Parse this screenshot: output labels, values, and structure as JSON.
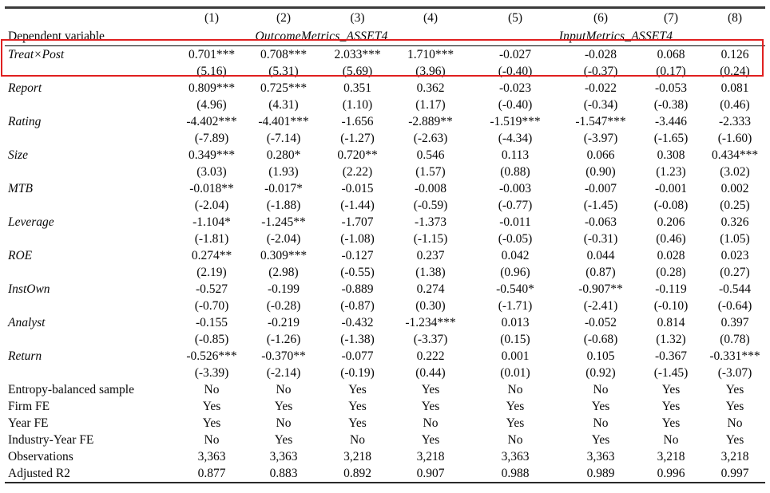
{
  "highlight": {
    "color": "#e02020",
    "target_row": "Treat×Post"
  },
  "table": {
    "dependent_variable_label": "Dependent variable",
    "column_numbers": [
      "(1)",
      "(2)",
      "(3)",
      "(4)",
      "(5)",
      "(6)",
      "(7)",
      "(8)"
    ],
    "dep_var_groups": [
      {
        "label": "OutcomeMetrics_ASSET4",
        "span": 4
      },
      {
        "label": "InputMetrics_ASSET4",
        "span": 4
      }
    ],
    "coefficient_rows": [
      {
        "variable": "Treat×Post",
        "highlighted": true,
        "coefficients": [
          "0.701***",
          "0.708***",
          "2.033***",
          "1.710***",
          "-0.027",
          "-0.028",
          "0.068",
          "0.126"
        ],
        "tstats": [
          "(5.16)",
          "(5.31)",
          "(5.69)",
          "(3.96)",
          "(-0.40)",
          "(-0.37)",
          "(0.17)",
          "(0.24)"
        ]
      },
      {
        "variable": "Report",
        "highlighted": false,
        "coefficients": [
          "0.809***",
          "0.725***",
          "0.351",
          "0.362",
          "-0.023",
          "-0.022",
          "-0.053",
          "0.081"
        ],
        "tstats": [
          "(4.96)",
          "(4.31)",
          "(1.10)",
          "(1.17)",
          "(-0.40)",
          "(-0.34)",
          "(-0.38)",
          "(0.46)"
        ]
      },
      {
        "variable": "Rating",
        "highlighted": false,
        "coefficients": [
          "-4.402***",
          "-4.401***",
          "-1.656",
          "-2.889**",
          "-1.519***",
          "-1.547***",
          "-3.446",
          "-2.333"
        ],
        "tstats": [
          "(-7.89)",
          "(-7.14)",
          "(-1.27)",
          "(-2.63)",
          "(-4.34)",
          "(-3.97)",
          "(-1.65)",
          "(-1.60)"
        ]
      },
      {
        "variable": "Size",
        "highlighted": false,
        "coefficients": [
          "0.349***",
          "0.280*",
          "0.720**",
          "0.546",
          "0.113",
          "0.066",
          "0.308",
          "0.434***"
        ],
        "tstats": [
          "(3.03)",
          "(1.93)",
          "(2.22)",
          "(1.57)",
          "(0.88)",
          "(0.90)",
          "(1.23)",
          "(3.02)"
        ]
      },
      {
        "variable": "MTB",
        "highlighted": false,
        "coefficients": [
          "-0.018**",
          "-0.017*",
          "-0.015",
          "-0.008",
          "-0.003",
          "-0.007",
          "-0.001",
          "0.002"
        ],
        "tstats": [
          "(-2.04)",
          "(-1.88)",
          "(-1.44)",
          "(-0.59)",
          "(-0.77)",
          "(-1.45)",
          "(-0.08)",
          "(0.25)"
        ]
      },
      {
        "variable": "Leverage",
        "highlighted": false,
        "coefficients": [
          "-1.104*",
          "-1.245**",
          "-1.707",
          "-1.373",
          "-0.011",
          "-0.063",
          "0.206",
          "0.326"
        ],
        "tstats": [
          "(-1.81)",
          "(-2.04)",
          "(-1.08)",
          "(-1.15)",
          "(-0.05)",
          "(-0.31)",
          "(0.46)",
          "(1.05)"
        ]
      },
      {
        "variable": "ROE",
        "highlighted": false,
        "coefficients": [
          "0.274**",
          "0.309***",
          "-0.127",
          "0.237",
          "0.042",
          "0.044",
          "0.028",
          "0.023"
        ],
        "tstats": [
          "(2.19)",
          "(2.98)",
          "(-0.55)",
          "(1.38)",
          "(0.96)",
          "(0.87)",
          "(0.28)",
          "(0.27)"
        ]
      },
      {
        "variable": "InstOwn",
        "highlighted": false,
        "coefficients": [
          "-0.527",
          "-0.199",
          "-0.889",
          "0.274",
          "-0.540*",
          "-0.907**",
          "-0.119",
          "-0.544"
        ],
        "tstats": [
          "(-0.70)",
          "(-0.28)",
          "(-0.87)",
          "(0.30)",
          "(-1.71)",
          "(-2.41)",
          "(-0.10)",
          "(-0.64)"
        ]
      },
      {
        "variable": "Analyst",
        "highlighted": false,
        "coefficients": [
          "-0.155",
          "-0.219",
          "-0.432",
          "-1.234***",
          "0.013",
          "-0.052",
          "0.814",
          "0.397"
        ],
        "tstats": [
          "(-0.85)",
          "(-1.26)",
          "(-1.38)",
          "(-3.37)",
          "(0.15)",
          "(-0.68)",
          "(1.32)",
          "(0.78)"
        ]
      },
      {
        "variable": "Return",
        "highlighted": false,
        "coefficients": [
          "-0.526***",
          "-0.370**",
          "-0.077",
          "0.222",
          "0.001",
          "0.105",
          "-0.367",
          "-0.331***"
        ],
        "tstats": [
          "(-3.39)",
          "(-2.14)",
          "(-0.19)",
          "(0.44)",
          "(0.01)",
          "(0.92)",
          "(-1.45)",
          "(-3.07)"
        ]
      }
    ],
    "footer_rows": [
      {
        "label": "Entropy-balanced sample",
        "values": [
          "No",
          "No",
          "Yes",
          "Yes",
          "No",
          "No",
          "Yes",
          "Yes"
        ]
      },
      {
        "label": "Firm FE",
        "values": [
          "Yes",
          "Yes",
          "Yes",
          "Yes",
          "Yes",
          "Yes",
          "Yes",
          "Yes"
        ]
      },
      {
        "label": "Year FE",
        "values": [
          "Yes",
          "No",
          "Yes",
          "No",
          "Yes",
          "No",
          "Yes",
          "No"
        ]
      },
      {
        "label": "Industry-Year FE",
        "values": [
          "No",
          "Yes",
          "No",
          "Yes",
          "No",
          "Yes",
          "No",
          "Yes"
        ]
      },
      {
        "label": "Observations",
        "values": [
          "3,363",
          "3,363",
          "3,218",
          "3,218",
          "3,363",
          "3,363",
          "3,218",
          "3,218"
        ]
      },
      {
        "label": "Adjusted R2",
        "values": [
          "0.877",
          "0.883",
          "0.892",
          "0.907",
          "0.988",
          "0.989",
          "0.996",
          "0.997"
        ]
      }
    ]
  }
}
